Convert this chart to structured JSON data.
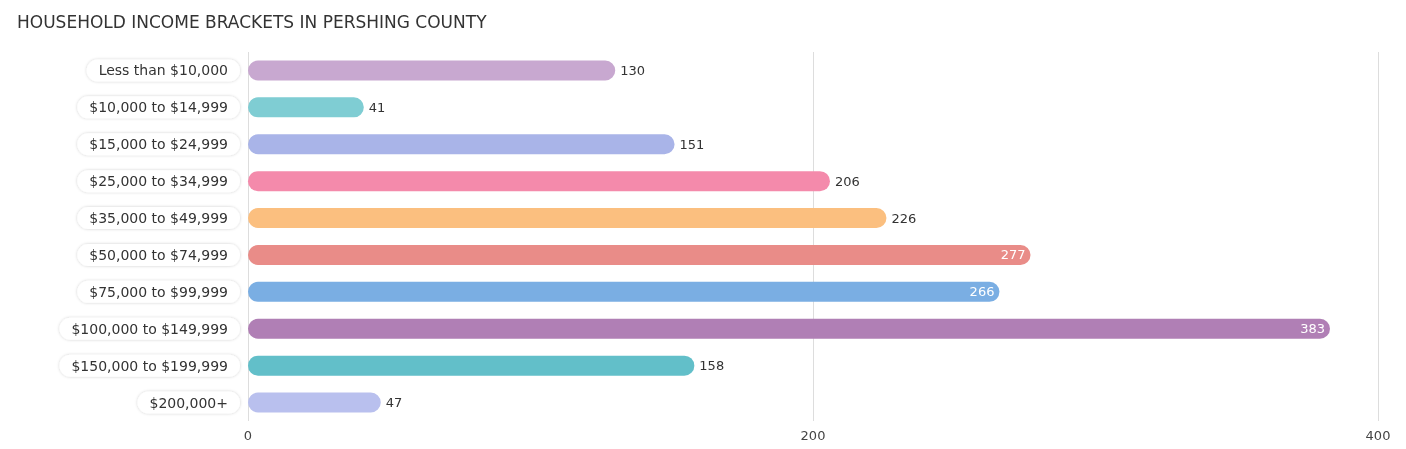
{
  "chart_data": {
    "type": "bar",
    "orientation": "horizontal",
    "title": "HOUSEHOLD INCOME BRACKETS IN PERSHING COUNTY",
    "categories": [
      "Less than $10,000",
      "$10,000 to $14,999",
      "$15,000 to $24,999",
      "$25,000 to $34,999",
      "$35,000 to $49,999",
      "$50,000 to $74,999",
      "$75,000 to $99,999",
      "$100,000 to $149,999",
      "$150,000 to $199,999",
      "$200,000+"
    ],
    "values": [
      130,
      41,
      151,
      206,
      226,
      277,
      266,
      383,
      158,
      47
    ],
    "colors": [
      "#c8a8d0",
      "#7fcdd3",
      "#a9b4e8",
      "#f48aab",
      "#fbbf7f",
      "#e98c88",
      "#7aaee3",
      "#b07fb5",
      "#62bfc9",
      "#b9c0ee"
    ],
    "xlim": [
      0,
      400
    ],
    "xticks": [
      0,
      200,
      400
    ],
    "grid": "x",
    "data_labels": true
  }
}
